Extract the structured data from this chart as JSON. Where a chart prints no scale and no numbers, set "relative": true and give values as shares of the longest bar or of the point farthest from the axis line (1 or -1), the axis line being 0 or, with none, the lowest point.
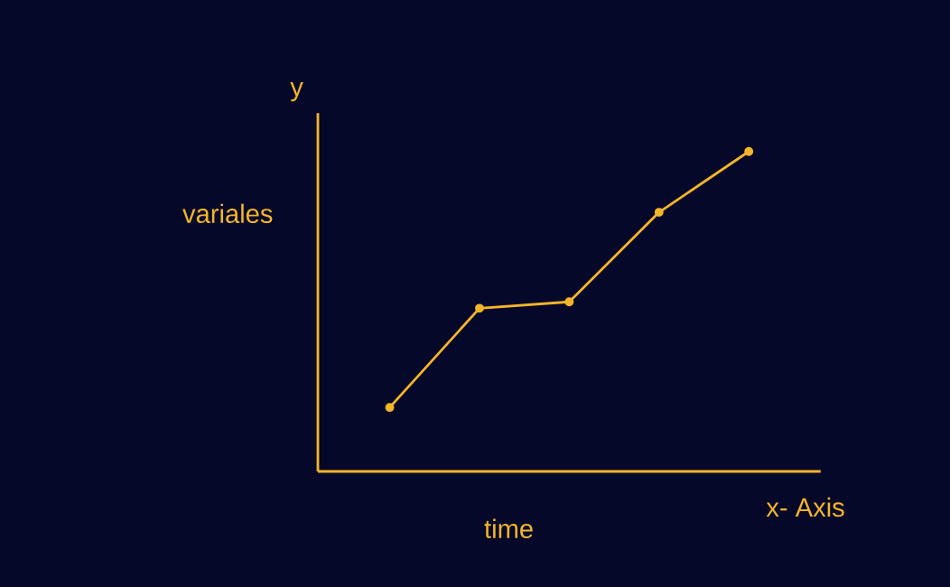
{
  "chart_data": {
    "type": "line",
    "relative": true,
    "ylabel": "y",
    "xlabel": "x- Axis",
    "annotations": [
      "variales",
      "time"
    ],
    "categories": [
      null,
      null,
      null,
      null,
      null
    ],
    "marker": "circle",
    "series": [
      {
        "color": "#f5b52a",
        "values": [
          0.2,
          0.51,
          0.53,
          0.81,
          1.0
        ]
      }
    ]
  }
}
